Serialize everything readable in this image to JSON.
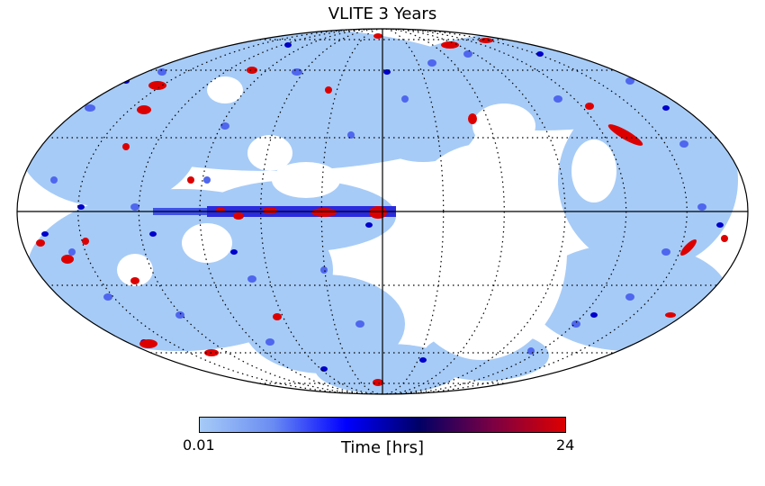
{
  "title": "VLITE 3 Years",
  "colorbar": {
    "label": "Time [hrs]",
    "min_label": "0.01",
    "max_label": "24",
    "min_value": 0.01,
    "max_value": 24,
    "colors": [
      "#a6cbf7",
      "#6a8cf2",
      "#0000ff",
      "#000066",
      "#7a0044",
      "#dd0000"
    ]
  },
  "map": {
    "projection": "mollweide",
    "graticule": "dotted",
    "background": "#ffffff",
    "low_color": "#a6cbf7",
    "mid_color": "#4f66ee",
    "high_color": "#e00000"
  }
}
